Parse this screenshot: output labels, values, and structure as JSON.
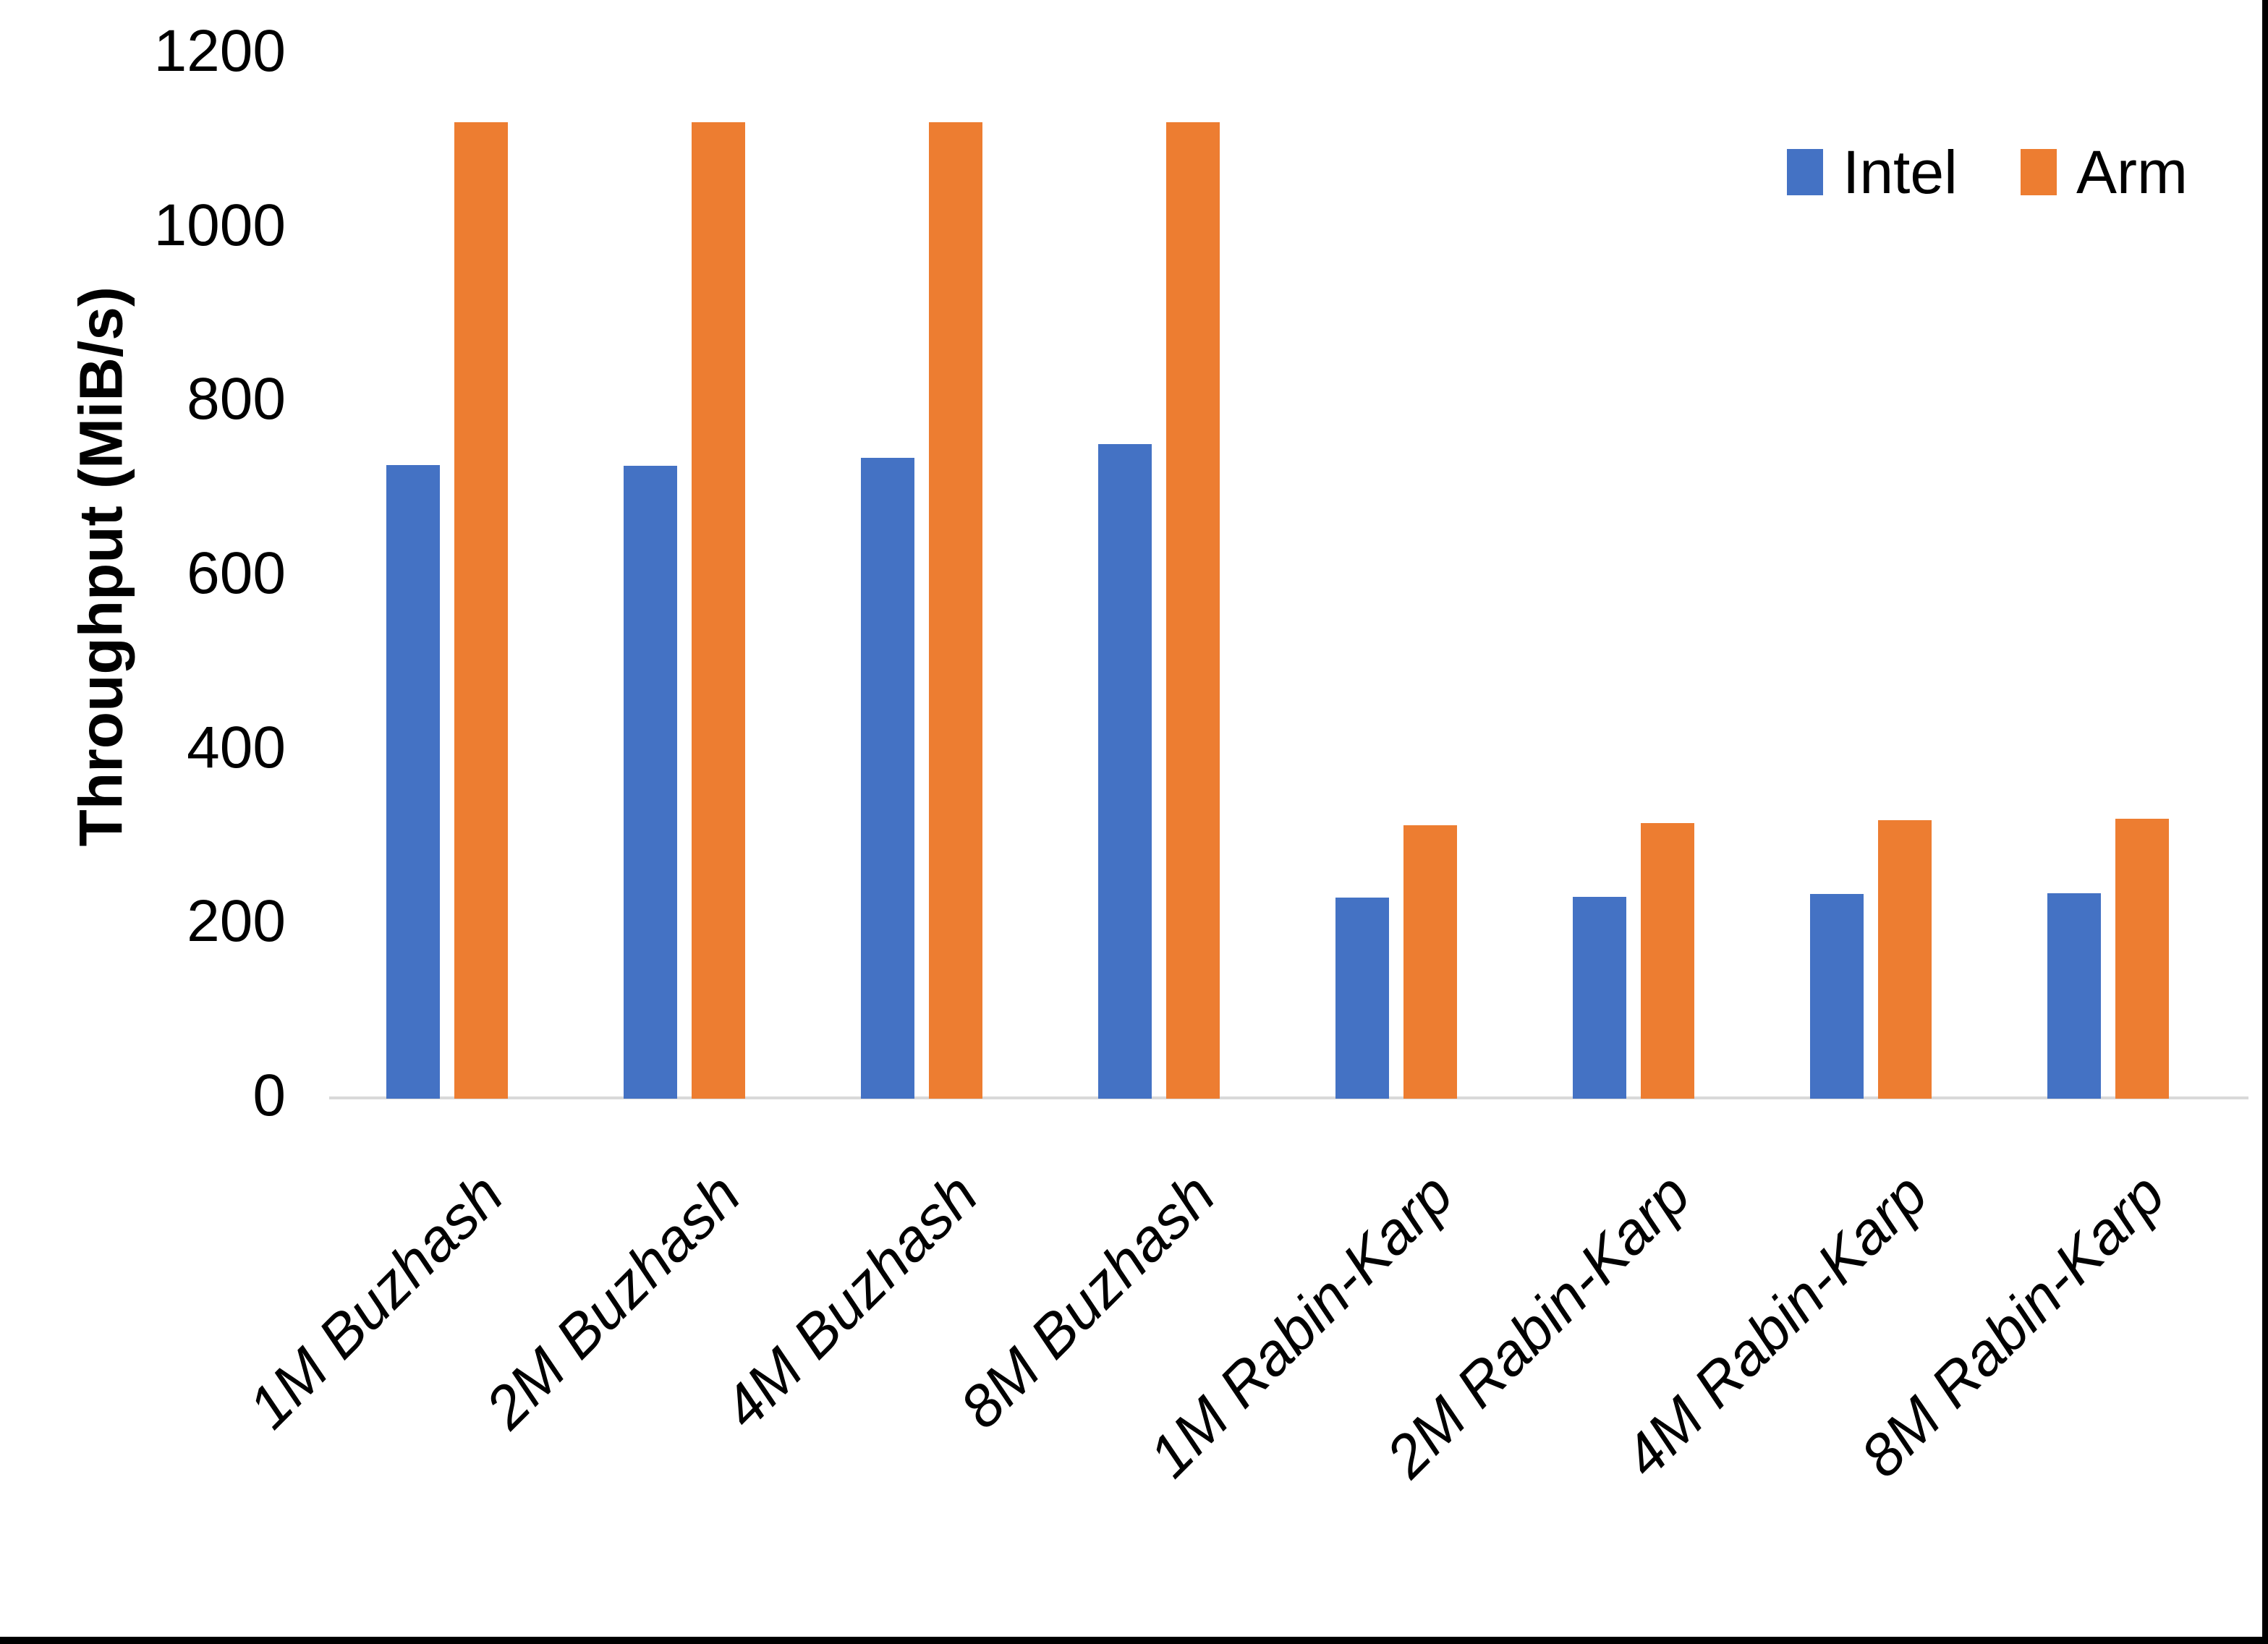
{
  "chart_data": {
    "type": "bar",
    "title": "",
    "ylabel": "Throughput (MiB/s)",
    "xlabel": "",
    "categories": [
      "1M Buzhash",
      "2M Buzhash",
      "4M Buzhash",
      "8M Buzhash",
      "1M Rabin-Karp",
      "2M Rabin-Karp",
      "4M Rabin-Karp",
      "8M Rabin-Karp"
    ],
    "series": [
      {
        "name": "Intel",
        "color": "#4472C4",
        "values": [
          728,
          727,
          736,
          752,
          231,
          232,
          235,
          236
        ]
      },
      {
        "name": "Arm",
        "color": "#ED7D31",
        "values": [
          1122,
          1122,
          1122,
          1122,
          314,
          317,
          320,
          322
        ]
      }
    ],
    "ylim": [
      0,
      1200
    ],
    "yticks": [
      0,
      200,
      400,
      600,
      800,
      1000,
      1200
    ],
    "grid": false,
    "legend_position": "top-right",
    "category_label_rotation_deg": -45,
    "axis_line_color": "#D9D9D9",
    "text_color": "#000000",
    "frame_border_color": "#000000"
  }
}
